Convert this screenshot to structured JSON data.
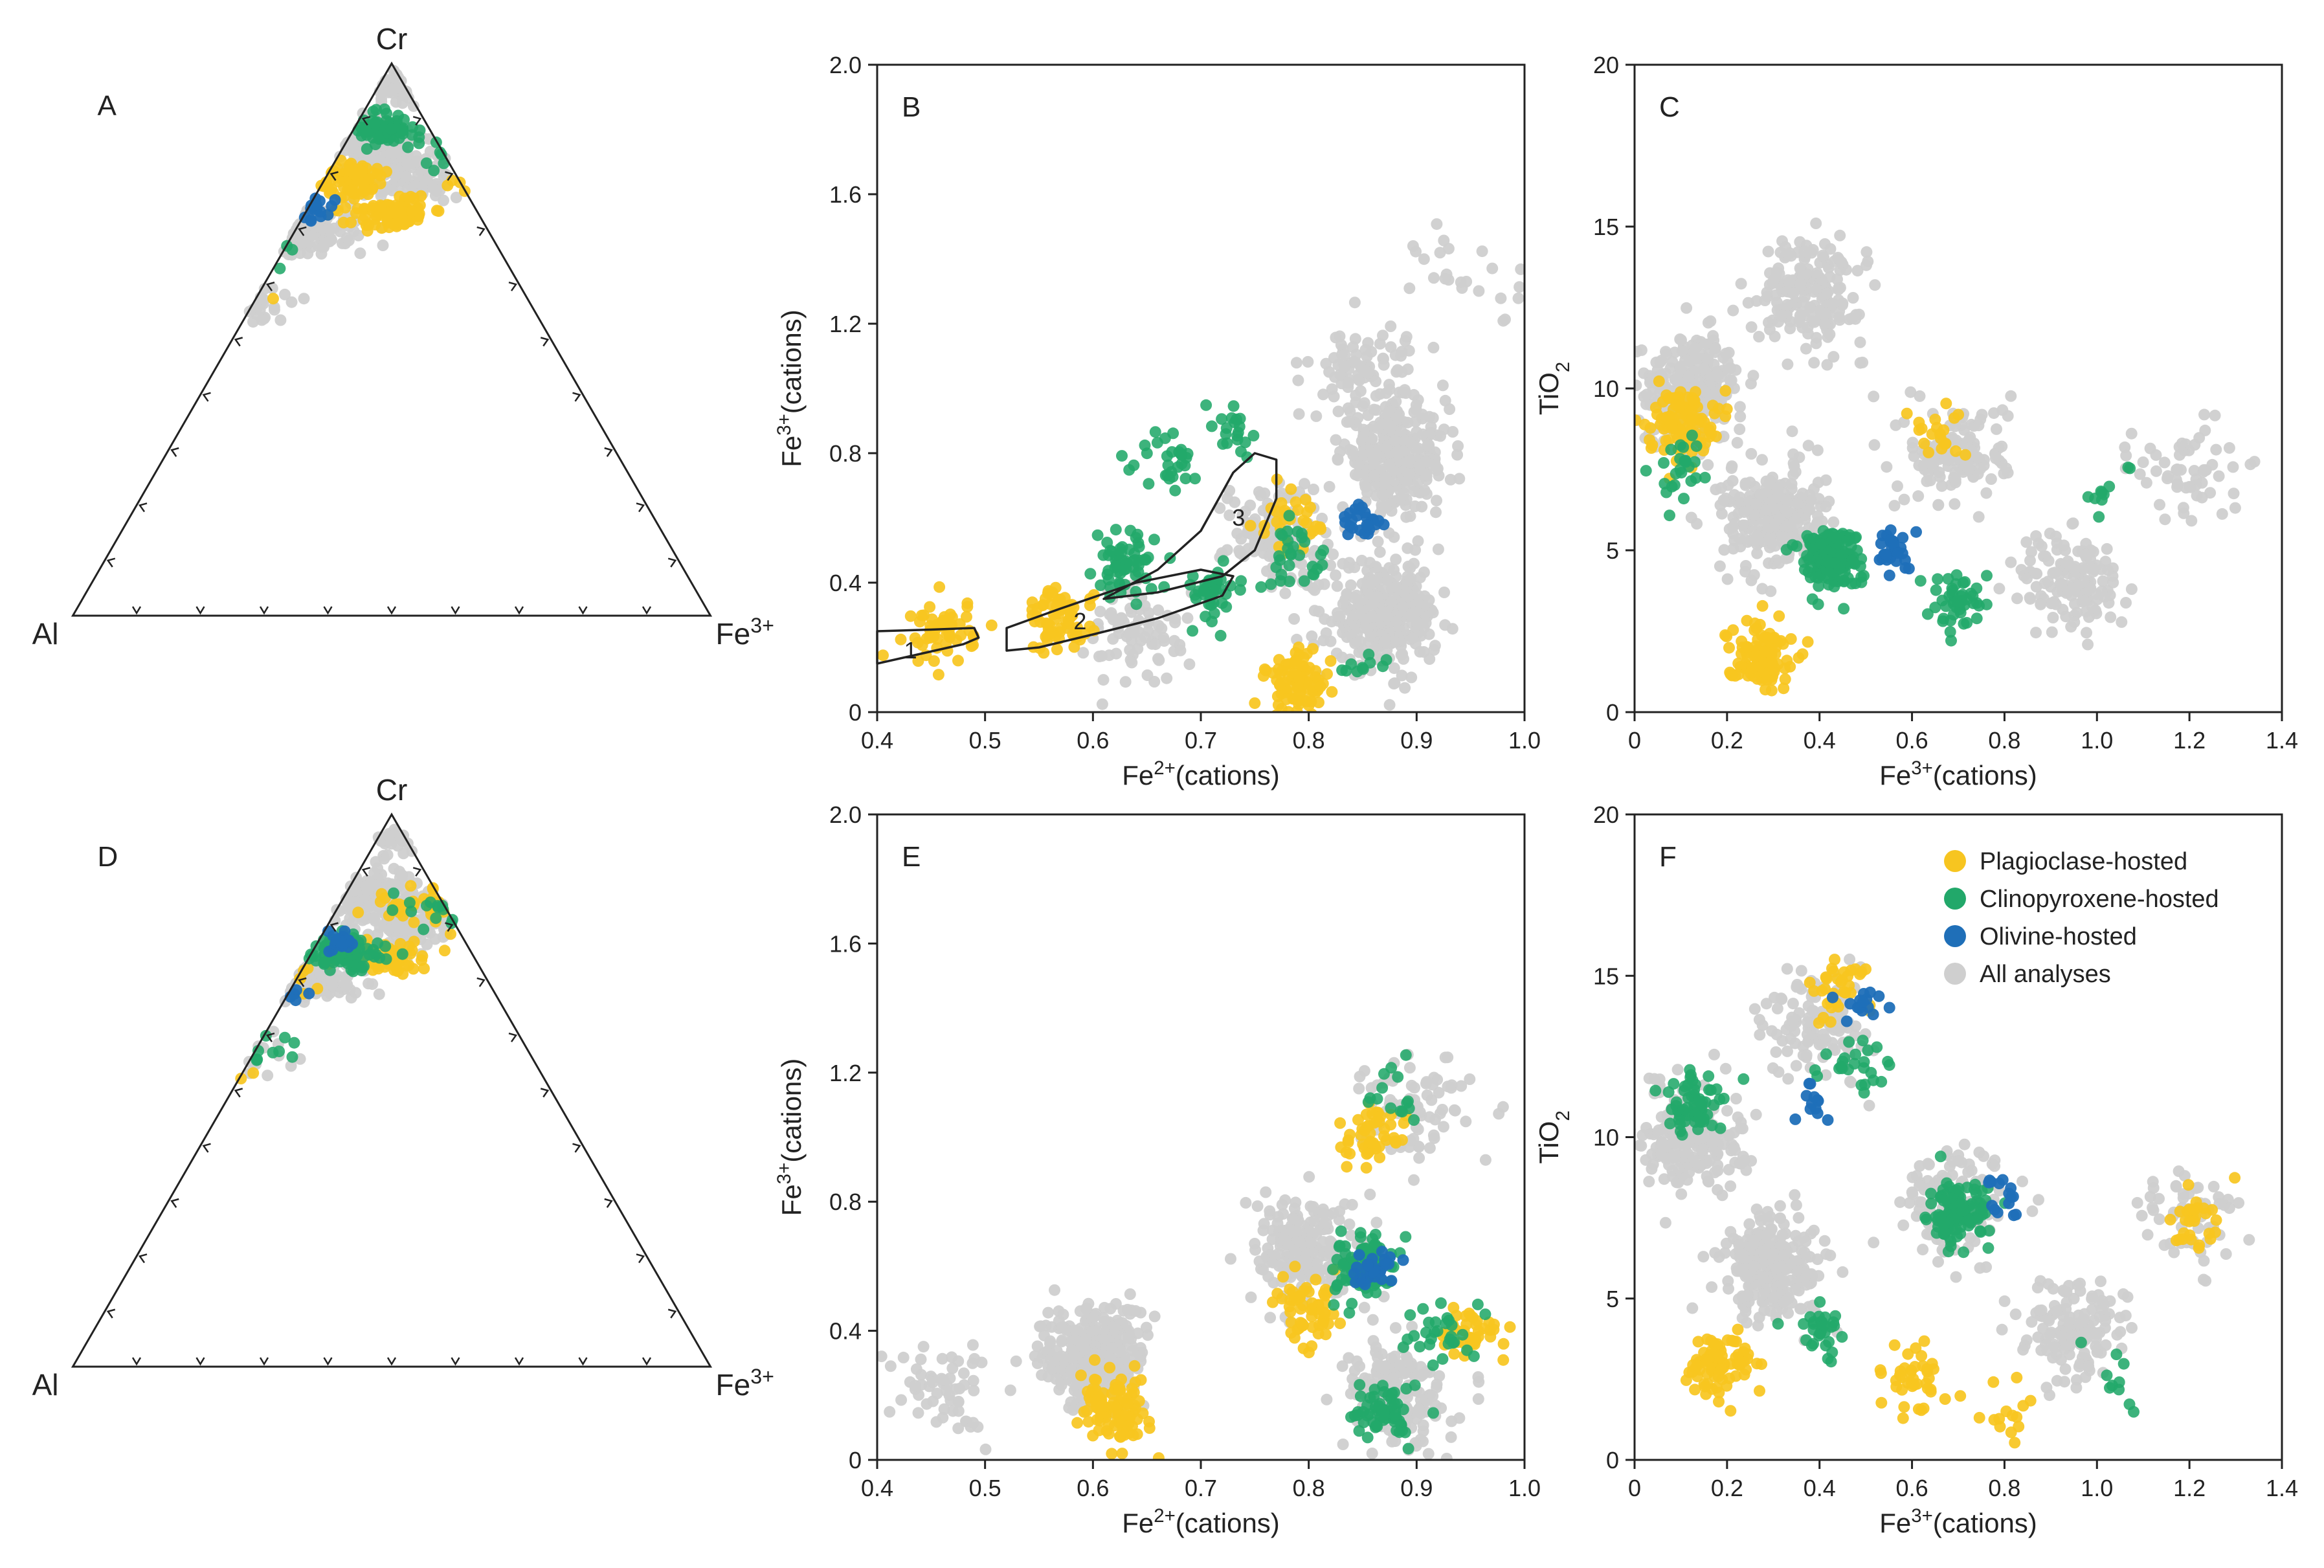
{
  "colors": {
    "plagioclase": "#F7C520",
    "clinopyroxene": "#22A86A",
    "olivine": "#1F6FB8",
    "all": "#CFCFCF",
    "axis": "#222222"
  },
  "legend": {
    "items": [
      {
        "key": "plagioclase",
        "label": "Plagioclase-hosted"
      },
      {
        "key": "clinopyroxene",
        "label": "Clinopyroxene-hosted"
      },
      {
        "key": "olivine",
        "label": "Olivine-hosted"
      },
      {
        "key": "all",
        "label": "All analyses"
      }
    ]
  },
  "chart_data": [
    {
      "id": "A",
      "type": "ternary",
      "letter": "A",
      "vertices": {
        "top": "Cr",
        "left": "Al",
        "right": "Fe3+"
      },
      "vertex_labels": {
        "top": "Cr",
        "left": "Al",
        "right_base": "Fe",
        "right_sup": "3+"
      },
      "tick_divisions": 10,
      "series": [
        {
          "key": "all",
          "name": "All analyses",
          "clusters": [
            [
              0.54,
              0.04,
              120
            ],
            [
              0.45,
              0.14,
              190
            ],
            [
              0.52,
              0.2,
              130
            ],
            [
              0.36,
              0.3,
              160
            ],
            [
              0.24,
              0.43,
              110
            ],
            [
              0.15,
              0.52,
              70
            ],
            [
              0.65,
              0.1,
              60
            ],
            [
              0.4,
              0.1,
              110
            ]
          ]
        },
        {
          "key": "plagioclase",
          "name": "Plagioclase-hosted",
          "clusters": [
            [
              0.5,
              0.27,
              90
            ],
            [
              0.44,
              0.21,
              80
            ],
            [
              0.66,
              0.22,
              50
            ],
            [
              0.27,
              0.41,
              10
            ]
          ]
        },
        {
          "key": "clinopyroxene",
          "name": "Clinopyroxene-hosted",
          "clusters": [
            [
              0.48,
              0.12,
              80
            ],
            [
              0.29,
              0.33,
              40
            ],
            [
              0.6,
              0.16,
              30
            ],
            [
              0.76,
              0.13,
              20
            ]
          ]
        },
        {
          "key": "olivine",
          "name": "Olivine-hosted",
          "clusters": [
            [
              0.37,
              0.26,
              35
            ]
          ]
        }
      ]
    },
    {
      "id": "D",
      "type": "ternary",
      "letter": "D",
      "vertices": {
        "top": "Cr",
        "left": "Al",
        "right": "Fe3+"
      },
      "vertex_labels": {
        "top": "Cr",
        "left": "Al",
        "right_base": "Fe",
        "right_sup": "3+"
      },
      "tick_divisions": 10,
      "series": [
        {
          "key": "all",
          "name": "All analyses",
          "clusters": [
            [
              0.54,
              0.04,
              120
            ],
            [
              0.45,
              0.14,
              190
            ],
            [
              0.52,
              0.2,
              130
            ],
            [
              0.36,
              0.3,
              160
            ],
            [
              0.24,
              0.43,
              110
            ],
            [
              0.15,
              0.52,
              70
            ],
            [
              0.65,
              0.1,
              60
            ]
          ]
        },
        {
          "key": "plagioclase",
          "name": "Plagioclase-hosted",
          "clusters": [
            [
              0.5,
              0.26,
              60
            ],
            [
              0.55,
              0.17,
              40
            ],
            [
              0.34,
              0.28,
              25
            ],
            [
              0.21,
              0.47,
              35
            ]
          ]
        },
        {
          "key": "clinopyroxene",
          "name": "Clinopyroxene-hosted",
          "clusters": [
            [
              0.75,
              0.1,
              50
            ],
            [
              0.6,
              0.17,
              40
            ],
            [
              0.42,
              0.25,
              110
            ],
            [
              0.28,
              0.42,
              30
            ],
            [
              0.17,
              0.5,
              10
            ]
          ]
        },
        {
          "key": "olivine",
          "name": "Olivine-hosted",
          "clusters": [
            [
              0.42,
              0.23,
              25
            ],
            [
              0.33,
              0.33,
              15
            ]
          ]
        }
      ]
    },
    {
      "id": "B",
      "type": "scatter",
      "letter": "B",
      "xlim": [
        0.4,
        1.0
      ],
      "ylim": [
        0,
        2.0
      ],
      "xticks": [
        "0.4",
        "0.5",
        "0.6",
        "0.7",
        "0.8",
        "0.9",
        "1.0"
      ],
      "yticks": [
        "0",
        "0.4",
        "0.8",
        "1.2",
        "1.6",
        "2.0"
      ],
      "xlabel": {
        "base": "Fe",
        "sup": "2+",
        "tail": "(cations)"
      },
      "ylabel": {
        "base": "Fe",
        "sup": "3+",
        "tail": "(cations)"
      },
      "regions": [
        {
          "label": "1",
          "label_at": [
            0.431,
            0.19
          ],
          "outline": [
            [
              0.4,
              0.25
            ],
            [
              0.45,
              0.255
            ],
            [
              0.49,
              0.26
            ],
            [
              0.494,
              0.23
            ],
            [
              0.48,
              0.21
            ],
            [
              0.44,
              0.18
            ],
            [
              0.4,
              0.15
            ]
          ]
        },
        {
          "label": "2",
          "label_at": [
            0.588,
            0.28
          ],
          "outline": [
            [
              0.52,
              0.19
            ],
            [
              0.52,
              0.26
            ],
            [
              0.57,
              0.32
            ],
            [
              0.64,
              0.4
            ],
            [
              0.7,
              0.44
            ],
            [
              0.73,
              0.42
            ],
            [
              0.72,
              0.36
            ],
            [
              0.66,
              0.29
            ],
            [
              0.6,
              0.24
            ],
            [
              0.55,
              0.2
            ]
          ]
        },
        {
          "label": "3",
          "label_at": [
            0.735,
            0.6
          ],
          "outline": [
            [
              0.61,
              0.35
            ],
            [
              0.66,
              0.44
            ],
            [
              0.7,
              0.56
            ],
            [
              0.73,
              0.74
            ],
            [
              0.75,
              0.8
            ],
            [
              0.77,
              0.78
            ],
            [
              0.77,
              0.66
            ],
            [
              0.75,
              0.5
            ],
            [
              0.72,
              0.42
            ],
            [
              0.66,
              0.37
            ]
          ]
        }
      ],
      "series": [
        {
          "key": "all",
          "name": "All analyses",
          "clusters": [
            [
              0.88,
              0.78,
              320
            ],
            [
              0.87,
              0.3,
              320
            ],
            [
              0.85,
              1.05,
              90
            ],
            [
              0.77,
              0.55,
              140
            ],
            [
              0.64,
              0.24,
              80
            ],
            [
              0.95,
              1.35,
              25
            ]
          ]
        },
        {
          "key": "plagioclase",
          "name": "Plagioclase-hosted",
          "clusters": [
            [
              0.46,
              0.25,
              55
            ],
            [
              0.57,
              0.28,
              70
            ],
            [
              0.79,
              0.09,
              90
            ],
            [
              0.78,
              0.58,
              30
            ]
          ]
        },
        {
          "key": "clinopyroxene",
          "name": "Clinopyroxene-hosted",
          "clusters": [
            [
              0.63,
              0.45,
              60
            ],
            [
              0.71,
              0.37,
              40
            ],
            [
              0.79,
              0.48,
              30
            ],
            [
              0.67,
              0.78,
              30
            ],
            [
              0.73,
              0.88,
              20
            ],
            [
              0.85,
              0.13,
              10
            ]
          ]
        },
        {
          "key": "olivine",
          "name": "Olivine-hosted",
          "clusters": [
            [
              0.85,
              0.58,
              25
            ]
          ]
        }
      ]
    },
    {
      "id": "C",
      "type": "scatter",
      "letter": "C",
      "xlim": [
        0,
        1.4
      ],
      "ylim": [
        0,
        20
      ],
      "xticks": [
        "0",
        "0.2",
        "0.4",
        "0.6",
        "0.8",
        "1.0",
        "1.2",
        "1.4"
      ],
      "yticks": [
        "0",
        "5",
        "10",
        "15",
        "20"
      ],
      "xlabel": {
        "base": "Fe",
        "sup": "3+",
        "tail": "(cations)"
      },
      "ylabel": {
        "base": "TiO",
        "sub": "2"
      },
      "series": [
        {
          "key": "all",
          "name": "All analyses",
          "clusters": [
            [
              0.12,
              10.0,
              250
            ],
            [
              0.38,
              13.0,
              190
            ],
            [
              0.3,
              6.0,
              260
            ],
            [
              0.7,
              8.0,
              130
            ],
            [
              0.95,
              4.0,
              140
            ],
            [
              1.2,
              7.5,
              60
            ]
          ]
        },
        {
          "key": "plagioclase",
          "name": "Plagioclase-hosted",
          "clusters": [
            [
              0.1,
              9.0,
              100
            ],
            [
              0.27,
              1.8,
              110
            ],
            [
              0.66,
              8.5,
              20
            ]
          ]
        },
        {
          "key": "clinopyroxene",
          "name": "Clinopyroxene-hosted",
          "clusters": [
            [
              0.1,
              7.5,
              25
            ],
            [
              0.42,
              4.8,
              160
            ],
            [
              0.7,
              3.5,
              45
            ],
            [
              1.02,
              6.8,
              10
            ]
          ]
        },
        {
          "key": "olivine",
          "name": "Olivine-hosted",
          "clusters": [
            [
              0.56,
              5.0,
              30
            ]
          ]
        }
      ]
    },
    {
      "id": "E",
      "type": "scatter",
      "letter": "E",
      "xlim": [
        0.4,
        1.0
      ],
      "ylim": [
        0,
        2.0
      ],
      "xticks": [
        "0.4",
        "0.5",
        "0.6",
        "0.7",
        "0.8",
        "0.9",
        "1.0"
      ],
      "yticks": [
        "0",
        "0.4",
        "0.8",
        "1.2",
        "1.6",
        "2.0"
      ],
      "xlabel": {
        "base": "Fe",
        "sup": "2+",
        "tail": "(cations)"
      },
      "ylabel": {
        "base": "Fe",
        "sup": "3+",
        "tail": "(cations)"
      },
      "series": [
        {
          "key": "all",
          "name": "All analyses",
          "clusters": [
            [
              0.6,
              0.32,
              300
            ],
            [
              0.8,
              0.65,
              220
            ],
            [
              0.88,
              0.2,
              180
            ],
            [
              0.9,
              1.1,
              80
            ],
            [
              0.46,
              0.23,
              60
            ]
          ]
        },
        {
          "key": "plagioclase",
          "name": "Plagioclase-hosted",
          "clusters": [
            [
              0.62,
              0.15,
              100
            ],
            [
              0.8,
              0.45,
              60
            ],
            [
              0.86,
              1.0,
              50
            ],
            [
              0.95,
              0.4,
              40
            ]
          ]
        },
        {
          "key": "clinopyroxene",
          "name": "Clinopyroxene-hosted",
          "clusters": [
            [
              0.85,
              0.6,
              90
            ],
            [
              0.87,
              0.14,
              60
            ],
            [
              0.92,
              0.4,
              30
            ],
            [
              0.88,
              1.15,
              15
            ]
          ]
        },
        {
          "key": "olivine",
          "name": "Olivine-hosted",
          "clusters": [
            [
              0.86,
              0.6,
              30
            ]
          ]
        }
      ]
    },
    {
      "id": "F",
      "type": "scatter",
      "letter": "F",
      "xlim": [
        0,
        1.4
      ],
      "ylim": [
        0,
        20
      ],
      "xticks": [
        "0",
        "0.2",
        "0.4",
        "0.6",
        "0.8",
        "1.0",
        "1.2",
        "1.4"
      ],
      "yticks": [
        "0",
        "5",
        "10",
        "15",
        "20"
      ],
      "xlabel": {
        "base": "Fe",
        "sup": "3+",
        "tail": "(cations)"
      },
      "ylabel": {
        "base": "TiO",
        "sub": "2"
      },
      "series": [
        {
          "key": "all",
          "name": "All analyses",
          "clusters": [
            [
              0.12,
              10.0,
              220
            ],
            [
              0.4,
              13.5,
              120
            ],
            [
              0.3,
              6.0,
              260
            ],
            [
              0.7,
              8.0,
              130
            ],
            [
              0.95,
              4.0,
              140
            ],
            [
              1.2,
              7.5,
              60
            ]
          ]
        },
        {
          "key": "plagioclase",
          "name": "Plagioclase-hosted",
          "clusters": [
            [
              0.18,
              3.0,
              80
            ],
            [
              0.44,
              14.5,
              35
            ],
            [
              0.6,
              2.5,
              40
            ],
            [
              1.2,
              7.5,
              30
            ],
            [
              0.8,
              1.3,
              15
            ]
          ]
        },
        {
          "key": "clinopyroxene",
          "name": "Clinopyroxene-hosted",
          "clusters": [
            [
              0.13,
              11.0,
              60
            ],
            [
              0.7,
              7.6,
              120
            ],
            [
              0.48,
              12.0,
              25
            ],
            [
              0.4,
              4.0,
              30
            ],
            [
              1.05,
              2.5,
              10
            ]
          ]
        },
        {
          "key": "olivine",
          "name": "Olivine-hosted",
          "clusters": [
            [
              0.5,
              14.0,
              15
            ],
            [
              0.38,
              11.0,
              12
            ],
            [
              0.8,
              8.2,
              15
            ]
          ]
        }
      ]
    }
  ]
}
